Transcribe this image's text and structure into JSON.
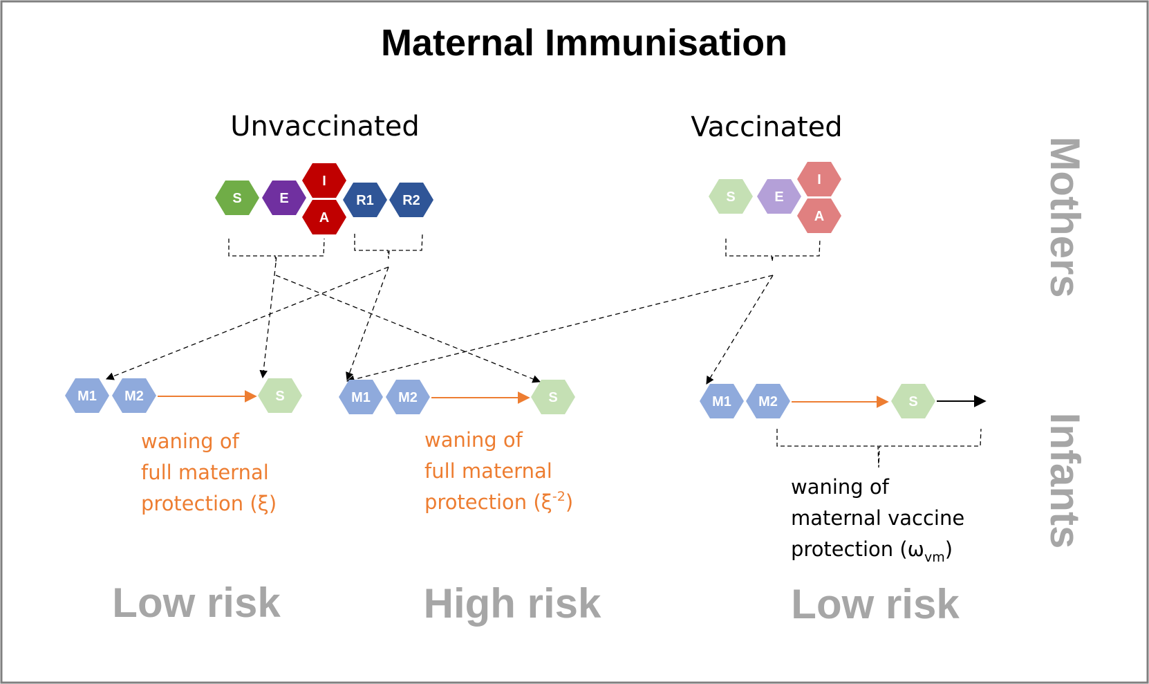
{
  "title": "Maternal Immunisation",
  "groups": {
    "unvaccinated": "Unvaccinated",
    "vaccinated": "Vaccinated"
  },
  "side_labels": {
    "mothers": "Mothers",
    "infants": "Infants"
  },
  "colors": {
    "susceptible": "#70ad47",
    "exposed": "#7030a0",
    "infected": "#c00000",
    "recovered": "#2f5597",
    "vacc_susceptible": "#c5e0b4",
    "vacc_exposed": "#b4a0d8",
    "vacc_infected": "#e08080",
    "maternal": "#8faadc",
    "orange_text": "#ed7d31",
    "risk_grey": "#a6a6a6"
  },
  "mothers_unvaccinated": {
    "compartments": [
      {
        "id": "S",
        "label": "S"
      },
      {
        "id": "E",
        "label": "E"
      },
      {
        "id": "I",
        "label": "I"
      },
      {
        "id": "A",
        "label": "A"
      },
      {
        "id": "R1",
        "label": "R1"
      },
      {
        "id": "R2",
        "label": "R2"
      }
    ]
  },
  "mothers_vaccinated": {
    "compartments": [
      {
        "id": "S",
        "label": "S"
      },
      {
        "id": "E",
        "label": "E"
      },
      {
        "id": "I",
        "label": "I"
      },
      {
        "id": "A",
        "label": "A"
      }
    ]
  },
  "infants": [
    {
      "id": "low-risk-1",
      "compartments": [
        "M1",
        "M2",
        "S"
      ],
      "note_lines": [
        "waning of",
        "full maternal",
        "protection (ξ)"
      ],
      "risk": "Low risk"
    },
    {
      "id": "high-risk",
      "compartments": [
        "M1",
        "M2",
        "S"
      ],
      "note_lines": [
        "waning of",
        "full maternal",
        "protection (ξ"
      ],
      "note_sup": "-2",
      "note_tail": ")",
      "risk": "High risk"
    },
    {
      "id": "low-risk-2",
      "compartments": [
        "M1",
        "M2",
        "S"
      ],
      "note_lines": [
        "waning of",
        "maternal vaccine",
        "protection (ω"
      ],
      "note_sub": "vm",
      "note_tail": ")",
      "risk": "Low risk"
    }
  ]
}
